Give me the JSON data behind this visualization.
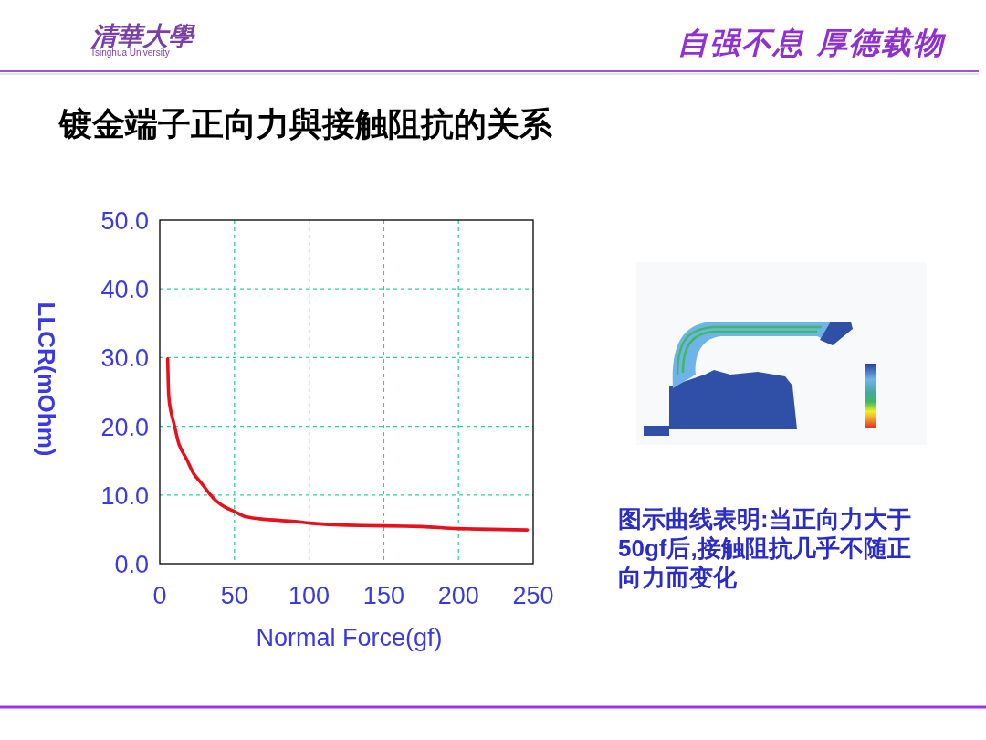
{
  "chart_data": {
    "type": "line",
    "title": "镀金端子正向力與接触阻抗的关系",
    "xlabel": "Normal Force(gf)",
    "ylabel": "LLCR(mOhm)",
    "x": [
      5.3,
      5.6,
      6.0,
      7.4,
      9.6,
      13,
      18,
      23,
      28,
      34,
      38,
      44,
      50,
      58,
      68,
      80,
      92,
      100,
      125,
      150,
      175,
      200,
      222,
      246
    ],
    "series": [
      {
        "color": "#e8101a",
        "values": [
          29.8,
          27,
          24.4,
          22.2,
          20.3,
          17.3,
          15.2,
          13,
          11.7,
          10,
          9.1,
          8.2,
          7.6,
          6.8,
          6.5,
          6.3,
          6.1,
          5.9,
          5.6,
          5.5,
          5.4,
          5.1,
          5.0,
          4.9
        ]
      }
    ],
    "xlim": [
      0,
      250
    ],
    "ylim": [
      0,
      50
    ],
    "xticks": [
      0,
      50,
      100,
      150,
      200,
      250
    ],
    "yticks": [
      {
        "value": 0,
        "label": "0.0"
      },
      {
        "value": 10,
        "label": "10.0"
      },
      {
        "value": 20,
        "label": "20.0"
      },
      {
        "value": 30,
        "label": "30.0"
      },
      {
        "value": 40,
        "label": "40.0"
      },
      {
        "value": 50,
        "label": "50.0"
      }
    ],
    "grid": true,
    "annotations": [
      "清華大學",
      "Tsinghua University",
      "自强不息 厚德载物",
      "图示曲线表明:当正向力大于50gf后,接触阻抗几乎不随正向力而变化"
    ]
  }
}
